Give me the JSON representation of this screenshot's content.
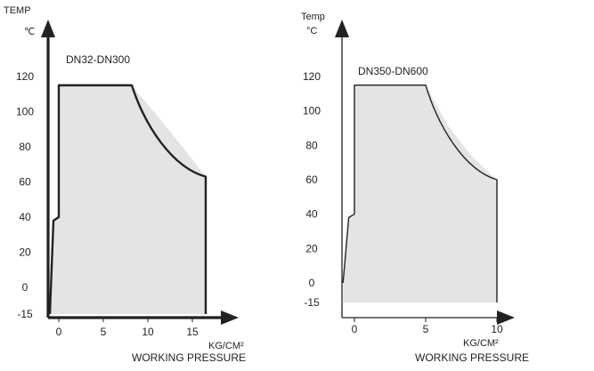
{
  "chart_data": [
    {
      "type": "area",
      "title": "DN32-DN300",
      "ylabel_top": "TEMP",
      "ylabel_unit": "℃",
      "xlabel_unit": "KG/CM²",
      "xlabel": "WORKING PRESSURE",
      "yticks": [
        "120",
        "100",
        "80",
        "60",
        "40",
        "20",
        "0",
        "-15"
      ],
      "ytick_values": [
        120,
        100,
        80,
        60,
        40,
        20,
        0,
        -15
      ],
      "xticks": [
        "0",
        "5",
        "10",
        "15"
      ],
      "xtick_values": [
        0,
        5,
        10,
        15
      ],
      "xlim": [
        -1.2,
        20
      ],
      "ylim": [
        -15,
        145
      ],
      "boundary": [
        {
          "x": -1.0,
          "y": -15
        },
        {
          "x": -0.6,
          "y": 38
        },
        {
          "x": 0,
          "y": 40
        },
        {
          "x": 0,
          "y": 115
        },
        {
          "x": 8.2,
          "y": 115
        },
        {
          "x": 11.5,
          "y": 95
        },
        {
          "x": 14.5,
          "y": 76
        },
        {
          "x": 16.5,
          "y": 63
        },
        {
          "x": 16.5,
          "y": -15
        }
      ],
      "fill_color": "#e4e4e4",
      "line_color": "#222222"
    },
    {
      "type": "area",
      "title": "DN350-DN600",
      "ylabel_top": "Temp",
      "ylabel_unit": "°C",
      "xlabel_unit": "KG/CM²",
      "xlabel": "WORKING PRESSURE",
      "yticks": [
        "120",
        "100",
        "80",
        "60",
        "40",
        "20",
        "0",
        "-15"
      ],
      "ytick_values": [
        120,
        100,
        80,
        60,
        40,
        20,
        0,
        -15
      ],
      "xticks": [
        "0",
        "5",
        "10"
      ],
      "xtick_values": [
        0,
        5,
        10
      ],
      "xlim": [
        -1.2,
        11.4
      ],
      "ylim": [
        -15,
        138
      ],
      "boundary": [
        {
          "x": -0.8,
          "y": 0
        },
        {
          "x": -0.4,
          "y": 38
        },
        {
          "x": 0,
          "y": 40
        },
        {
          "x": 0,
          "y": 115
        },
        {
          "x": 5,
          "y": 115
        },
        {
          "x": 6.5,
          "y": 92
        },
        {
          "x": 8.3,
          "y": 73
        },
        {
          "x": 10,
          "y": 60
        },
        {
          "x": 10,
          "y": -15
        }
      ],
      "fill_color": "#e4e4e4",
      "line_color": "#222222"
    }
  ]
}
